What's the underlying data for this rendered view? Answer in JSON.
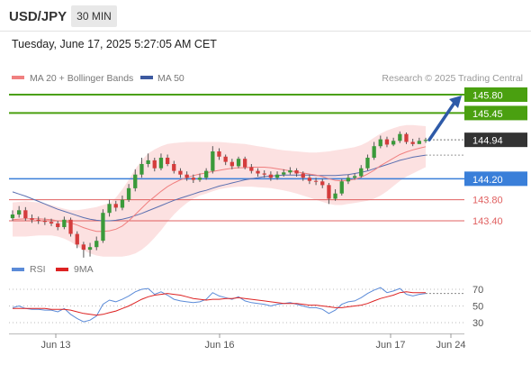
{
  "header": {
    "symbol": "USD/JPY",
    "timeframe": "30 MIN",
    "datetime": "Tuesday, June 17, 2025 5:27:05 AM CET"
  },
  "legend": {
    "ma20_bb": "MA 20 + Bollinger Bands",
    "ma50": "MA 50",
    "source": "Research © 2025 Trading Central"
  },
  "colors": {
    "candle_up": "#3a9a3a",
    "candle_down": "#d43c3c",
    "band_fill": "#fbdcdc",
    "ma20": "#f08080",
    "ma50": "#5a6fb0",
    "target": "#4aa010",
    "pivot": "#3a7fd9",
    "support": "#e06060",
    "arrow": "#2e5aa8",
    "last_price": "#333333",
    "rsi": "#5b8bd8",
    "rsi_ma": "#dd2222"
  },
  "chart_data": [
    {
      "type": "candlestick",
      "title": "USD/JPY",
      "timeframe": "30 MIN",
      "x_tick_labels": [
        "Jun 13",
        "Jun 16",
        "Jun 17",
        "Jun 24"
      ],
      "y_axis_labels": [
        "145.80",
        "145.45",
        "144.94",
        "144.20",
        "143.80",
        "143.40"
      ],
      "ylim": [
        142.5,
        146.0
      ],
      "levels": [
        {
          "label": "145.80",
          "value": 145.8,
          "kind": "target"
        },
        {
          "label": "145.45",
          "value": 145.45,
          "kind": "target"
        },
        {
          "label": "144.94",
          "value": 144.94,
          "kind": "last_price"
        },
        {
          "label": "144.20",
          "value": 144.2,
          "kind": "pivot"
        },
        {
          "label": "143.80",
          "value": 143.8,
          "kind": "support"
        },
        {
          "label": "143.40",
          "value": 143.4,
          "kind": "support"
        }
      ],
      "legend": [
        "MA 20 + Bollinger Bands",
        "MA 50"
      ],
      "annotation": "Research © 2025 Trading Central",
      "close": [
        143.52,
        143.6,
        143.45,
        143.42,
        143.4,
        143.38,
        143.35,
        143.28,
        143.42,
        143.15,
        142.95,
        142.85,
        142.9,
        143.02,
        143.55,
        143.72,
        143.65,
        143.8,
        144.02,
        144.28,
        144.48,
        144.55,
        144.4,
        144.6,
        144.48,
        144.35,
        144.28,
        144.22,
        144.18,
        144.22,
        144.35,
        144.72,
        144.62,
        144.52,
        144.44,
        144.58,
        144.42,
        144.35,
        144.3,
        144.28,
        144.22,
        144.28,
        144.32,
        144.36,
        144.3,
        144.22,
        144.16,
        144.15,
        144.08,
        143.82,
        143.92,
        144.15,
        144.22,
        144.25,
        144.4,
        144.6,
        144.82,
        144.95,
        144.85,
        144.92,
        145.05,
        144.9,
        144.86,
        144.92,
        144.94
      ],
      "open": [
        143.45,
        143.52,
        143.6,
        143.45,
        143.42,
        143.4,
        143.38,
        143.35,
        143.28,
        143.42,
        143.15,
        142.95,
        142.85,
        142.9,
        143.02,
        143.55,
        143.72,
        143.65,
        143.8,
        144.02,
        144.28,
        144.48,
        144.55,
        144.4,
        144.6,
        144.48,
        144.35,
        144.28,
        144.22,
        144.18,
        144.22,
        144.35,
        144.72,
        144.62,
        144.52,
        144.44,
        144.58,
        144.42,
        144.35,
        144.3,
        144.28,
        144.22,
        144.28,
        144.32,
        144.36,
        144.3,
        144.22,
        144.16,
        144.15,
        144.08,
        143.82,
        143.92,
        144.15,
        144.22,
        144.25,
        144.4,
        144.6,
        144.82,
        144.95,
        144.85,
        144.92,
        145.05,
        144.9,
        144.86,
        144.92
      ],
      "high": [
        143.6,
        143.68,
        143.66,
        143.52,
        143.48,
        143.46,
        143.44,
        143.4,
        143.48,
        143.46,
        143.2,
        143.0,
        142.98,
        143.1,
        143.62,
        143.8,
        143.78,
        143.88,
        144.1,
        144.38,
        144.6,
        144.68,
        144.6,
        144.68,
        144.66,
        144.54,
        144.4,
        144.34,
        144.28,
        144.3,
        144.4,
        144.82,
        144.78,
        144.66,
        144.58,
        144.62,
        144.62,
        144.48,
        144.4,
        144.36,
        144.34,
        144.34,
        144.38,
        144.42,
        144.4,
        144.34,
        144.28,
        144.22,
        144.2,
        144.12,
        144.0,
        144.2,
        144.28,
        144.3,
        144.46,
        144.66,
        144.9,
        145.02,
        145.0,
        144.98,
        145.1,
        145.08,
        144.96,
        144.98,
        144.98
      ],
      "low": [
        143.4,
        143.46,
        143.4,
        143.36,
        143.34,
        143.32,
        143.3,
        143.22,
        143.24,
        143.1,
        142.88,
        142.7,
        142.72,
        142.84,
        142.98,
        143.48,
        143.58,
        143.6,
        143.76,
        143.96,
        144.22,
        144.42,
        144.34,
        144.36,
        144.44,
        144.3,
        144.22,
        144.16,
        144.12,
        144.14,
        144.18,
        144.3,
        144.56,
        144.46,
        144.38,
        144.4,
        144.38,
        144.3,
        144.24,
        144.22,
        144.16,
        144.18,
        144.24,
        144.28,
        144.24,
        144.16,
        144.1,
        144.08,
        144.02,
        143.72,
        143.78,
        143.88,
        144.1,
        144.18,
        144.22,
        144.36,
        144.56,
        144.78,
        144.8,
        144.82,
        144.88,
        144.86,
        144.82,
        144.86,
        144.88
      ],
      "ma20": [
        143.42,
        143.43,
        143.44,
        143.44,
        143.44,
        143.43,
        143.42,
        143.4,
        143.39,
        143.36,
        143.32,
        143.27,
        143.23,
        143.2,
        143.2,
        143.21,
        143.24,
        143.3,
        143.4,
        143.52,
        143.64,
        143.76,
        143.86,
        143.96,
        144.05,
        144.12,
        144.18,
        144.22,
        144.26,
        144.29,
        144.31,
        144.34,
        144.36,
        144.38,
        144.4,
        144.41,
        144.41,
        144.42,
        144.42,
        144.42,
        144.41,
        144.39,
        144.37,
        144.35,
        144.33,
        144.31,
        144.29,
        144.27,
        144.24,
        144.2,
        144.17,
        144.16,
        144.17,
        144.19,
        144.23,
        144.29,
        144.36,
        144.45,
        144.52,
        144.59,
        144.66,
        144.71,
        144.75,
        144.78,
        144.81
      ],
      "ma50": [
        143.95,
        143.91,
        143.87,
        143.82,
        143.77,
        143.72,
        143.67,
        143.62,
        143.58,
        143.54,
        143.5,
        143.46,
        143.43,
        143.41,
        143.4,
        143.4,
        143.41,
        143.43,
        143.46,
        143.5,
        143.54,
        143.59,
        143.64,
        143.69,
        143.74,
        143.79,
        143.83,
        143.87,
        143.91,
        143.95,
        143.98,
        144.02,
        144.06,
        144.09,
        144.12,
        144.15,
        144.18,
        144.2,
        144.22,
        144.24,
        144.25,
        144.26,
        144.27,
        144.27,
        144.27,
        144.27,
        144.27,
        144.26,
        144.26,
        144.26,
        144.26,
        144.27,
        144.28,
        144.3,
        144.32,
        144.35,
        144.39,
        144.43,
        144.47,
        144.51,
        144.55,
        144.58,
        144.61,
        144.63,
        144.65
      ],
      "bb_upper": [
        143.75,
        143.76,
        143.77,
        143.76,
        143.75,
        143.73,
        143.7,
        143.66,
        143.63,
        143.6,
        143.6,
        143.62,
        143.64,
        143.66,
        143.7,
        143.74,
        143.84,
        144.0,
        144.18,
        144.38,
        144.55,
        144.68,
        144.76,
        144.82,
        144.86,
        144.88,
        144.89,
        144.9,
        144.9,
        144.9,
        144.9,
        144.9,
        144.9,
        144.89,
        144.88,
        144.87,
        144.86,
        144.84,
        144.82,
        144.8,
        144.78,
        144.76,
        144.74,
        144.73,
        144.72,
        144.71,
        144.7,
        144.7,
        144.71,
        144.72,
        144.74,
        144.76,
        144.78,
        144.8,
        144.84,
        144.9,
        144.98,
        145.06,
        145.12,
        145.16,
        145.2,
        145.22,
        145.22,
        145.21,
        145.2
      ],
      "bb_lower": [
        143.1,
        143.1,
        143.1,
        143.11,
        143.12,
        143.12,
        143.12,
        143.1,
        143.06,
        143.0,
        142.92,
        142.84,
        142.78,
        142.74,
        142.72,
        142.72,
        142.72,
        142.72,
        142.74,
        142.78,
        142.85,
        142.95,
        143.08,
        143.22,
        143.38,
        143.52,
        143.64,
        143.74,
        143.82,
        143.88,
        143.92,
        143.96,
        144.0,
        144.02,
        144.04,
        144.05,
        144.05,
        144.05,
        144.04,
        144.03,
        144.02,
        144.0,
        143.98,
        143.95,
        143.92,
        143.88,
        143.84,
        143.8,
        143.76,
        143.72,
        143.7,
        143.7,
        143.72,
        143.74,
        143.76,
        143.78,
        143.82,
        143.88,
        143.96,
        144.06,
        144.16,
        144.24,
        144.3,
        144.36,
        144.42
      ]
    },
    {
      "type": "line",
      "title": "RSI",
      "legend": [
        "RSI",
        "9MA"
      ],
      "y_tick_labels": [
        "70",
        "50",
        "30"
      ],
      "ylim": [
        20,
        80
      ],
      "rsi": [
        48,
        50,
        47,
        46,
        46,
        45,
        45,
        43,
        47,
        40,
        35,
        31,
        33,
        38,
        52,
        57,
        55,
        58,
        62,
        67,
        70,
        71,
        64,
        67,
        63,
        58,
        56,
        55,
        54,
        55,
        58,
        66,
        62,
        60,
        58,
        61,
        56,
        54,
        53,
        52,
        50,
        52,
        53,
        54,
        52,
        50,
        48,
        48,
        46,
        41,
        45,
        52,
        55,
        56,
        60,
        65,
        69,
        72,
        66,
        68,
        71,
        64,
        62,
        64,
        65
      ],
      "rsi_ma": [
        47,
        47,
        47,
        47,
        47,
        47,
        46,
        46,
        46,
        45,
        43,
        41,
        40,
        39,
        40,
        42,
        44,
        47,
        50,
        54,
        58,
        61,
        63,
        64,
        65,
        64,
        63,
        61,
        59,
        58,
        57,
        58,
        58,
        59,
        59,
        60,
        59,
        58,
        57,
        56,
        55,
        54,
        53,
        53,
        53,
        52,
        51,
        51,
        50,
        49,
        48,
        48,
        49,
        50,
        51,
        53,
        56,
        59,
        61,
        63,
        66,
        67,
        66,
        66,
        66
      ]
    }
  ]
}
